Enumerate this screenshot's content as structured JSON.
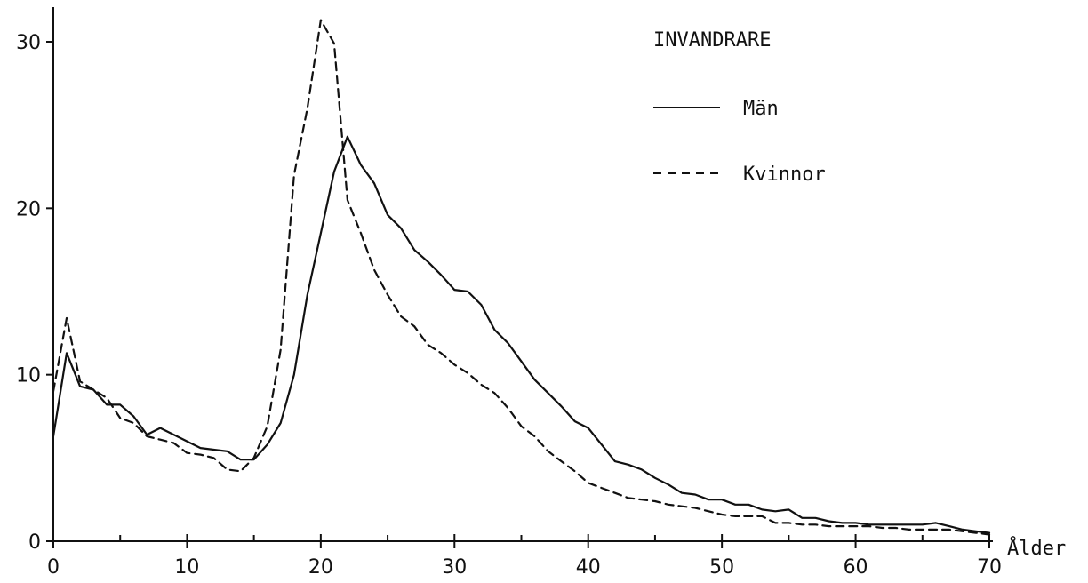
{
  "chart_data": {
    "type": "line",
    "title": "INVANDRARE",
    "xlabel": "Ålder",
    "ylabel": "",
    "xlim": [
      0,
      70
    ],
    "ylim": [
      0,
      33
    ],
    "xticks": [
      0,
      10,
      20,
      30,
      40,
      50,
      60,
      70
    ],
    "xminor": [
      5,
      15,
      25,
      35,
      45,
      55,
      65
    ],
    "yticks": [
      0,
      10,
      20,
      30
    ],
    "grid": false,
    "legend": "top-right",
    "series": [
      {
        "name": "Män",
        "style": "solid",
        "color": "#111111",
        "x": [
          0,
          1,
          2,
          3,
          4,
          5,
          6,
          7,
          8,
          9,
          10,
          11,
          12,
          13,
          14,
          15,
          16,
          17,
          18,
          19,
          20,
          21,
          22,
          23,
          24,
          25,
          26,
          27,
          28,
          29,
          30,
          31,
          32,
          33,
          34,
          35,
          36,
          37,
          38,
          39,
          40,
          41,
          42,
          43,
          44,
          45,
          46,
          47,
          48,
          49,
          50,
          51,
          52,
          53,
          54,
          55,
          56,
          57,
          58,
          59,
          60,
          61,
          62,
          63,
          64,
          65,
          66,
          67,
          68,
          69,
          70
        ],
        "y": [
          6.3,
          11.3,
          9.3,
          9.1,
          8.2,
          8.2,
          7.5,
          6.4,
          6.8,
          6.4,
          6.0,
          5.6,
          5.5,
          5.4,
          4.9,
          4.9,
          5.8,
          7.1,
          10.0,
          14.8,
          18.5,
          22.2,
          24.3,
          22.6,
          21.5,
          19.6,
          18.8,
          17.5,
          16.8,
          16.0,
          15.1,
          15.0,
          14.2,
          12.7,
          11.9,
          10.8,
          9.7,
          8.9,
          8.1,
          7.2,
          6.8,
          5.8,
          4.8,
          4.6,
          4.3,
          3.8,
          3.4,
          2.9,
          2.8,
          2.5,
          2.5,
          2.2,
          2.2,
          1.9,
          1.8,
          1.9,
          1.4,
          1.4,
          1.2,
          1.1,
          1.1,
          1.0,
          1.0,
          1.0,
          1.0,
          1.0,
          1.1,
          0.9,
          0.7,
          0.6,
          0.5
        ]
      },
      {
        "name": "Kvinnor",
        "style": "dashed",
        "color": "#111111",
        "x": [
          0,
          1,
          2,
          3,
          4,
          5,
          6,
          7,
          8,
          9,
          10,
          11,
          12,
          13,
          14,
          15,
          16,
          17,
          18,
          19,
          20,
          21,
          22,
          23,
          24,
          25,
          26,
          27,
          28,
          29,
          30,
          31,
          32,
          33,
          34,
          35,
          36,
          37,
          38,
          39,
          40,
          41,
          42,
          43,
          44,
          45,
          46,
          47,
          48,
          49,
          50,
          51,
          52,
          53,
          54,
          55,
          56,
          57,
          58,
          59,
          60,
          61,
          62,
          63,
          64,
          65,
          66,
          67,
          68,
          69,
          70
        ],
        "y": [
          9.0,
          13.4,
          9.6,
          9.1,
          8.6,
          7.4,
          7.1,
          6.3,
          6.1,
          5.9,
          5.3,
          5.2,
          5.0,
          4.3,
          4.2,
          5.0,
          6.9,
          11.5,
          22.0,
          26.0,
          31.3,
          29.9,
          20.5,
          18.5,
          16.3,
          14.8,
          13.5,
          12.9,
          11.8,
          11.3,
          10.6,
          10.1,
          9.4,
          8.9,
          8.0,
          6.9,
          6.3,
          5.4,
          4.8,
          4.2,
          3.5,
          3.2,
          2.9,
          2.6,
          2.5,
          2.4,
          2.2,
          2.1,
          2.0,
          1.8,
          1.6,
          1.5,
          1.5,
          1.5,
          1.1,
          1.1,
          1.0,
          1.0,
          0.9,
          0.9,
          0.9,
          0.9,
          0.8,
          0.8,
          0.7,
          0.7,
          0.7,
          0.7,
          0.6,
          0.5,
          0.4
        ]
      }
    ]
  }
}
